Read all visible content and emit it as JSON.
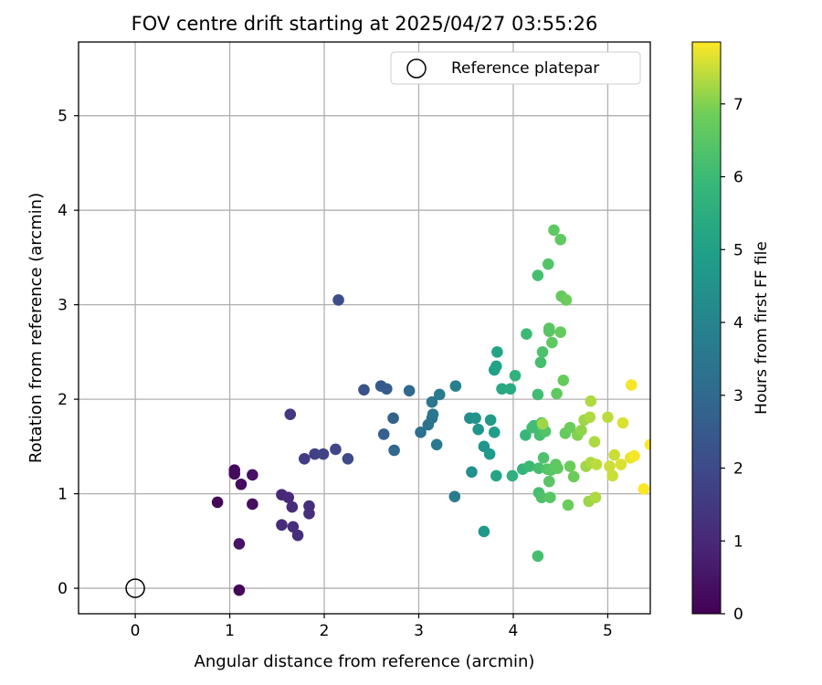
{
  "chart_data": {
    "type": "scatter",
    "title": "FOV centre drift starting at 2025/04/27 03:55:26",
    "xlabel": "Angular distance from reference (arcmin)",
    "ylabel": "Rotation from reference (arcmin)",
    "xlim": [
      -0.6,
      5.45
    ],
    "ylim": [
      -0.27,
      5.78
    ],
    "xticks": [
      0,
      1,
      2,
      3,
      4,
      5
    ],
    "yticks": [
      0,
      1,
      2,
      3,
      4,
      5
    ],
    "grid": true,
    "legend": {
      "position": "top-right",
      "label": "Reference platepar"
    },
    "reference": {
      "x": 0,
      "y": 0
    },
    "colorbar": {
      "label": "Hours from first FF file",
      "min": 0,
      "max": 7.85,
      "ticks": [
        0,
        1,
        2,
        3,
        4,
        5,
        6,
        7
      ],
      "colormap": "viridis"
    },
    "points": [
      {
        "x": 0.87,
        "y": 0.91,
        "h": 0.15
      },
      {
        "x": 1.05,
        "y": 1.25,
        "h": 0.2
      },
      {
        "x": 1.05,
        "y": 1.21,
        "h": 0.25
      },
      {
        "x": 1.12,
        "y": 1.1,
        "h": 0.3
      },
      {
        "x": 1.24,
        "y": 0.89,
        "h": 0.35
      },
      {
        "x": 1.24,
        "y": 1.2,
        "h": 0.4
      },
      {
        "x": 1.1,
        "y": 0.47,
        "h": 0.45
      },
      {
        "x": 1.1,
        "y": -0.02,
        "h": 0.1
      },
      {
        "x": 1.55,
        "y": 0.99,
        "h": 1.0
      },
      {
        "x": 1.62,
        "y": 0.96,
        "h": 1.05
      },
      {
        "x": 1.66,
        "y": 0.86,
        "h": 1.1
      },
      {
        "x": 1.55,
        "y": 0.67,
        "h": 1.1
      },
      {
        "x": 1.67,
        "y": 0.65,
        "h": 1.15
      },
      {
        "x": 1.72,
        "y": 0.56,
        "h": 1.15
      },
      {
        "x": 1.84,
        "y": 0.79,
        "h": 1.2
      },
      {
        "x": 1.84,
        "y": 0.87,
        "h": 1.2
      },
      {
        "x": 1.64,
        "y": 1.84,
        "h": 1.5
      },
      {
        "x": 1.79,
        "y": 1.37,
        "h": 1.6
      },
      {
        "x": 1.9,
        "y": 1.42,
        "h": 1.7
      },
      {
        "x": 1.99,
        "y": 1.42,
        "h": 1.8
      },
      {
        "x": 2.12,
        "y": 1.47,
        "h": 1.9
      },
      {
        "x": 2.25,
        "y": 1.37,
        "h": 2.0
      },
      {
        "x": 2.15,
        "y": 3.05,
        "h": 2.1
      },
      {
        "x": 2.42,
        "y": 2.1,
        "h": 2.2
      },
      {
        "x": 2.6,
        "y": 2.14,
        "h": 2.5
      },
      {
        "x": 2.66,
        "y": 2.11,
        "h": 2.6
      },
      {
        "x": 2.63,
        "y": 1.63,
        "h": 2.7
      },
      {
        "x": 2.73,
        "y": 1.8,
        "h": 2.8
      },
      {
        "x": 2.74,
        "y": 1.46,
        "h": 2.9
      },
      {
        "x": 2.9,
        "y": 2.09,
        "h": 3.0
      },
      {
        "x": 3.02,
        "y": 1.65,
        "h": 3.3
      },
      {
        "x": 3.1,
        "y": 1.73,
        "h": 3.4
      },
      {
        "x": 3.14,
        "y": 1.8,
        "h": 3.4
      },
      {
        "x": 3.15,
        "y": 1.84,
        "h": 3.5
      },
      {
        "x": 3.14,
        "y": 1.97,
        "h": 3.5
      },
      {
        "x": 3.22,
        "y": 2.05,
        "h": 3.6
      },
      {
        "x": 3.19,
        "y": 1.52,
        "h": 3.6
      },
      {
        "x": 3.38,
        "y": 0.97,
        "h": 3.7
      },
      {
        "x": 3.39,
        "y": 2.14,
        "h": 3.8
      },
      {
        "x": 3.54,
        "y": 1.8,
        "h": 4.3
      },
      {
        "x": 3.56,
        "y": 1.23,
        "h": 4.4
      },
      {
        "x": 3.6,
        "y": 1.8,
        "h": 4.5
      },
      {
        "x": 3.63,
        "y": 1.68,
        "h": 4.6
      },
      {
        "x": 3.69,
        "y": 1.5,
        "h": 4.6
      },
      {
        "x": 3.69,
        "y": 0.6,
        "h": 4.7
      },
      {
        "x": 3.75,
        "y": 1.42,
        "h": 4.8
      },
      {
        "x": 3.76,
        "y": 1.78,
        "h": 4.8
      },
      {
        "x": 3.8,
        "y": 1.65,
        "h": 4.9
      },
      {
        "x": 3.8,
        "y": 2.31,
        "h": 5.0
      },
      {
        "x": 3.82,
        "y": 2.35,
        "h": 5.1
      },
      {
        "x": 3.83,
        "y": 2.5,
        "h": 5.1
      },
      {
        "x": 3.82,
        "y": 1.19,
        "h": 5.2
      },
      {
        "x": 3.88,
        "y": 2.11,
        "h": 5.3
      },
      {
        "x": 3.97,
        "y": 2.11,
        "h": 5.4
      },
      {
        "x": 3.99,
        "y": 1.19,
        "h": 5.6
      },
      {
        "x": 4.02,
        "y": 2.25,
        "h": 5.7
      },
      {
        "x": 4.1,
        "y": 1.26,
        "h": 5.8
      },
      {
        "x": 4.13,
        "y": 1.62,
        "h": 5.9
      },
      {
        "x": 4.14,
        "y": 2.69,
        "h": 6.0
      },
      {
        "x": 4.17,
        "y": 1.29,
        "h": 6.0
      },
      {
        "x": 4.2,
        "y": 1.7,
        "h": 6.1
      },
      {
        "x": 4.22,
        "y": 1.72,
        "h": 6.1
      },
      {
        "x": 4.26,
        "y": 2.05,
        "h": 6.1
      },
      {
        "x": 4.26,
        "y": 3.31,
        "h": 6.2
      },
      {
        "x": 4.27,
        "y": 1.01,
        "h": 6.2
      },
      {
        "x": 4.27,
        "y": 1.27,
        "h": 6.2
      },
      {
        "x": 4.28,
        "y": 1.62,
        "h": 6.2
      },
      {
        "x": 4.29,
        "y": 2.39,
        "h": 6.2
      },
      {
        "x": 4.3,
        "y": 1.75,
        "h": 6.3
      },
      {
        "x": 4.3,
        "y": 0.96,
        "h": 6.3
      },
      {
        "x": 4.31,
        "y": 1.73,
        "h": 6.3
      },
      {
        "x": 4.31,
        "y": 2.5,
        "h": 6.3
      },
      {
        "x": 4.32,
        "y": 1.38,
        "h": 6.3
      },
      {
        "x": 4.34,
        "y": 1.66,
        "h": 6.4
      },
      {
        "x": 4.36,
        "y": 1.26,
        "h": 6.4
      },
      {
        "x": 4.37,
        "y": 3.43,
        "h": 6.4
      },
      {
        "x": 4.38,
        "y": 2.72,
        "h": 6.5
      },
      {
        "x": 4.38,
        "y": 2.75,
        "h": 6.5
      },
      {
        "x": 4.38,
        "y": 1.13,
        "h": 6.5
      },
      {
        "x": 4.39,
        "y": 0.96,
        "h": 6.5
      },
      {
        "x": 4.4,
        "y": 1.25,
        "h": 6.5
      },
      {
        "x": 4.41,
        "y": 2.6,
        "h": 6.6
      },
      {
        "x": 4.43,
        "y": 3.79,
        "h": 6.6
      },
      {
        "x": 4.45,
        "y": 1.31,
        "h": 6.6
      },
      {
        "x": 4.46,
        "y": 2.06,
        "h": 6.6
      },
      {
        "x": 4.47,
        "y": 1.27,
        "h": 6.6
      },
      {
        "x": 4.5,
        "y": 3.69,
        "h": 6.6
      },
      {
        "x": 4.5,
        "y": 2.71,
        "h": 6.7
      },
      {
        "x": 4.51,
        "y": 3.09,
        "h": 6.7
      },
      {
        "x": 4.53,
        "y": 2.2,
        "h": 6.7
      },
      {
        "x": 4.55,
        "y": 1.64,
        "h": 6.7
      },
      {
        "x": 4.56,
        "y": 3.05,
        "h": 6.8
      },
      {
        "x": 4.58,
        "y": 0.88,
        "h": 6.8
      },
      {
        "x": 4.6,
        "y": 1.29,
        "h": 6.8
      },
      {
        "x": 4.6,
        "y": 1.7,
        "h": 6.8
      },
      {
        "x": 4.64,
        "y": 1.18,
        "h": 6.8
      },
      {
        "x": 4.26,
        "y": 0.34,
        "h": 6.2
      },
      {
        "x": 4.31,
        "y": 1.74,
        "h": 7.2
      },
      {
        "x": 4.68,
        "y": 1.62,
        "h": 7.0
      },
      {
        "x": 4.72,
        "y": 1.67,
        "h": 7.1
      },
      {
        "x": 4.75,
        "y": 1.78,
        "h": 7.2
      },
      {
        "x": 4.77,
        "y": 1.29,
        "h": 7.2
      },
      {
        "x": 4.8,
        "y": 0.92,
        "h": 7.2
      },
      {
        "x": 4.81,
        "y": 1.81,
        "h": 7.3
      },
      {
        "x": 4.82,
        "y": 1.98,
        "h": 7.3
      },
      {
        "x": 4.82,
        "y": 1.33,
        "h": 7.3
      },
      {
        "x": 4.86,
        "y": 1.55,
        "h": 7.3
      },
      {
        "x": 4.87,
        "y": 0.96,
        "h": 7.3
      },
      {
        "x": 4.88,
        "y": 1.31,
        "h": 7.4
      },
      {
        "x": 5.0,
        "y": 1.81,
        "h": 7.4
      },
      {
        "x": 5.02,
        "y": 1.29,
        "h": 7.5
      },
      {
        "x": 5.05,
        "y": 1.19,
        "h": 7.5
      },
      {
        "x": 5.07,
        "y": 1.41,
        "h": 7.5
      },
      {
        "x": 5.14,
        "y": 1.31,
        "h": 7.6
      },
      {
        "x": 5.16,
        "y": 1.75,
        "h": 7.6
      },
      {
        "x": 5.24,
        "y": 1.38,
        "h": 7.7
      },
      {
        "x": 5.25,
        "y": 2.15,
        "h": 7.8
      },
      {
        "x": 5.28,
        "y": 1.4,
        "h": 7.8
      },
      {
        "x": 5.38,
        "y": 1.05,
        "h": 7.85
      },
      {
        "x": 5.45,
        "y": 1.52,
        "h": 7.85
      }
    ]
  }
}
